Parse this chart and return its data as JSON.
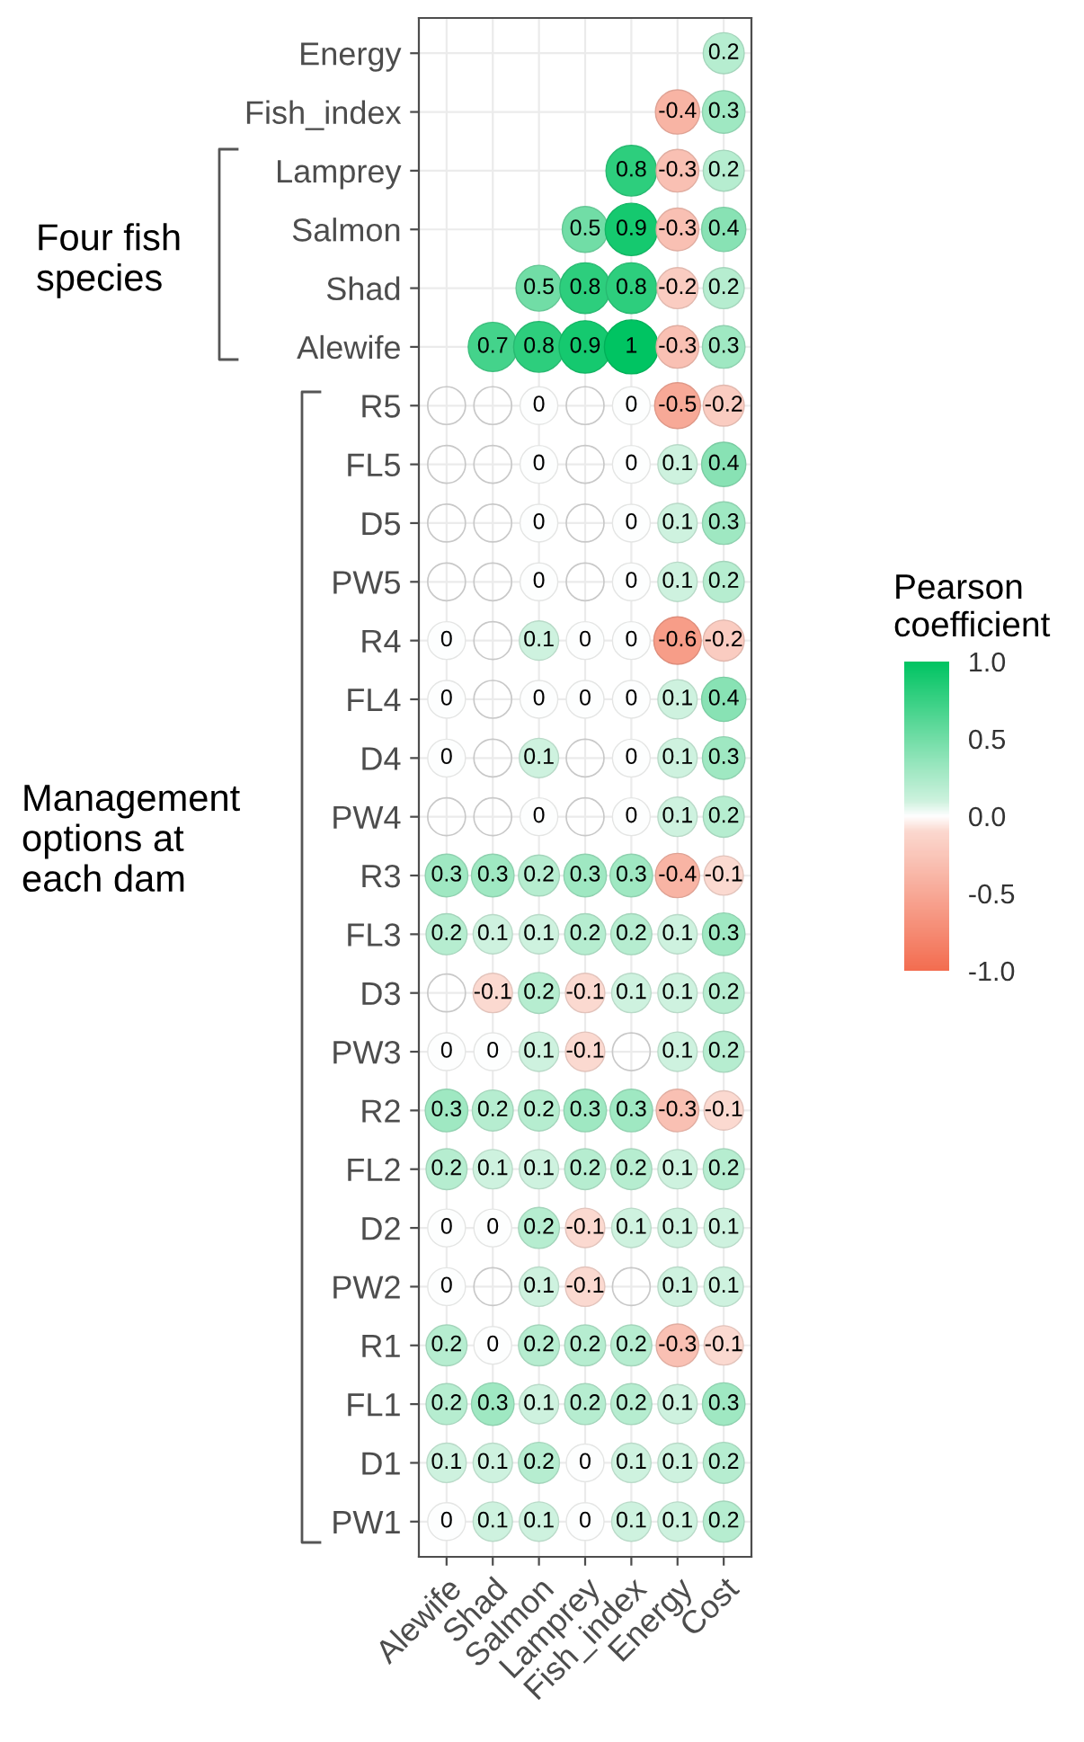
{
  "chart_data": {
    "type": "heatmap",
    "clabel": "Pearson\ncoefficient",
    "grid": true,
    "categories": [
      "Alewife",
      "Shad",
      "Salmon",
      "Lamprey",
      "Fish_index",
      "Energy",
      "Cost"
    ],
    "y_categories": [
      "Energy",
      "Fish_index",
      "Lamprey",
      "Salmon",
      "Shad",
      "Alewife",
      "R5",
      "FL5",
      "D5",
      "PW5",
      "R4",
      "FL4",
      "D4",
      "PW4",
      "R3",
      "FL3",
      "D3",
      "PW3",
      "R2",
      "FL2",
      "D2",
      "PW2",
      "R1",
      "FL1",
      "D1",
      "PW1"
    ],
    "cells": [
      [
        null,
        null,
        null,
        null,
        null,
        null,
        0.2
      ],
      [
        null,
        null,
        null,
        null,
        null,
        -0.4,
        0.3
      ],
      [
        null,
        null,
        null,
        null,
        0.8,
        -0.3,
        0.2
      ],
      [
        null,
        null,
        null,
        0.5,
        0.9,
        -0.3,
        0.4
      ],
      [
        null,
        null,
        0.5,
        0.8,
        0.8,
        -0.2,
        0.2
      ],
      [
        null,
        0.7,
        0.8,
        0.9,
        1,
        -0.3,
        0.3
      ],
      [
        null,
        null,
        0,
        null,
        0,
        -0.5,
        -0.2
      ],
      [
        null,
        null,
        0,
        null,
        0,
        0.1,
        0.4
      ],
      [
        null,
        null,
        0,
        null,
        0,
        0.1,
        0.3
      ],
      [
        null,
        null,
        0,
        null,
        0,
        0.1,
        0.2
      ],
      [
        0,
        null,
        0.1,
        0,
        0,
        -0.6,
        -0.2
      ],
      [
        0,
        null,
        0,
        0,
        0,
        0.1,
        0.4
      ],
      [
        0,
        null,
        0.1,
        null,
        0,
        0.1,
        0.3
      ],
      [
        null,
        null,
        0,
        null,
        0,
        0.1,
        0.2
      ],
      [
        0.3,
        0.3,
        0.2,
        0.3,
        0.3,
        -0.4,
        -0.1
      ],
      [
        0.2,
        0.1,
        0.1,
        0.2,
        0.2,
        0.1,
        0.3
      ],
      [
        null,
        -0.1,
        0.2,
        -0.1,
        0.1,
        0.1,
        0.2
      ],
      [
        0,
        0,
        0.1,
        -0.1,
        null,
        0.1,
        0.2
      ],
      [
        0.3,
        0.2,
        0.2,
        0.3,
        0.3,
        -0.3,
        -0.1
      ],
      [
        0.2,
        0.1,
        0.1,
        0.2,
        0.2,
        0.1,
        0.2
      ],
      [
        0,
        0,
        0.2,
        -0.1,
        0.1,
        0.1,
        0.1
      ],
      [
        0,
        null,
        0.1,
        -0.1,
        null,
        0.1,
        0.1
      ],
      [
        0.2,
        0,
        0.2,
        0.2,
        0.2,
        -0.3,
        -0.1
      ],
      [
        0.2,
        0.3,
        0.1,
        0.2,
        0.2,
        0.1,
        0.3
      ],
      [
        0.1,
        0.1,
        0.2,
        0,
        0.1,
        0.1,
        0.2
      ],
      [
        0,
        0.1,
        0.1,
        0,
        0.1,
        0.1,
        0.2
      ]
    ],
    "cell_labels": [
      [
        null,
        null,
        null,
        null,
        null,
        null,
        "0.2"
      ],
      [
        null,
        null,
        null,
        null,
        null,
        "-0.4",
        "0.3"
      ],
      [
        null,
        null,
        null,
        null,
        "0.8",
        "-0.3",
        "0.2"
      ],
      [
        null,
        null,
        null,
        "0.5",
        "0.9",
        "-0.3",
        "0.4"
      ],
      [
        null,
        null,
        "0.5",
        "0.8",
        "0.8",
        "-0.2",
        "0.2"
      ],
      [
        null,
        "0.7",
        "0.8",
        "0.9",
        "1",
        "-0.3",
        "0.3"
      ],
      [
        null,
        null,
        "0",
        null,
        "0",
        "-0.5",
        "-0.2"
      ],
      [
        null,
        null,
        "0",
        null,
        "0",
        "0.1",
        "0.4"
      ],
      [
        null,
        null,
        "0",
        null,
        "0",
        "0.1",
        "0.3"
      ],
      [
        null,
        null,
        "0",
        null,
        "0",
        "0.1",
        "0.2"
      ],
      [
        "0",
        null,
        "0.1",
        "0",
        "0",
        "-0.6",
        "-0.2"
      ],
      [
        "0",
        null,
        "0",
        "0",
        "0",
        "0.1",
        "0.4"
      ],
      [
        "0",
        null,
        "0.1",
        null,
        "0",
        "0.1",
        "0.3"
      ],
      [
        null,
        null,
        "0",
        null,
        "0",
        "0.1",
        "0.2"
      ],
      [
        "0.3",
        "0.3",
        "0.2",
        "0.3",
        "0.3",
        "-0.4",
        "-0.1"
      ],
      [
        "0.2",
        "0.1",
        "0.1",
        "0.2",
        "0.2",
        "0.1",
        "0.3"
      ],
      [
        null,
        "-0.1",
        "0.2",
        "-0.1",
        "0.1",
        "0.1",
        "0.2"
      ],
      [
        "0",
        "0",
        "0.1",
        "-0.1",
        null,
        "0.1",
        "0.2"
      ],
      [
        "0.3",
        "0.2",
        "0.2",
        "0.3",
        "0.3",
        "-0.3",
        "-0.1"
      ],
      [
        "0.2",
        "0.1",
        "0.1",
        "0.2",
        "0.2",
        "0.1",
        "0.2"
      ],
      [
        "0",
        "0",
        "0.2",
        "-0.1",
        "0.1",
        "0.1",
        "0.1"
      ],
      [
        "0",
        null,
        "0.1",
        "-0.1",
        null,
        "0.1",
        "0.1"
      ],
      [
        "0.2",
        "0",
        "0.2",
        "0.2",
        "0.2",
        "-0.3",
        "-0.1"
      ],
      [
        "0.2",
        "0.3",
        "0.1",
        "0.2",
        "0.2",
        "0.1",
        "0.3"
      ],
      [
        "0.1",
        "0.1",
        "0.2",
        "0",
        "0.1",
        "0.1",
        "0.2"
      ],
      [
        "0",
        "0.1",
        "0.1",
        "0",
        "0.1",
        "0.1",
        "0.2"
      ]
    ],
    "clim": [
      -1,
      1
    ],
    "cticks": [
      {
        "value": -1,
        "label": "-1.0"
      },
      {
        "value": -0.5,
        "label": "-0.5"
      },
      {
        "value": 0,
        "label": "0.0"
      },
      {
        "value": 0.5,
        "label": "0.5"
      },
      {
        "value": 1,
        "label": "1.0"
      }
    ],
    "annotations": [
      "Four fish\nspecies",
      "Management\noptions at\neach dam"
    ]
  }
}
